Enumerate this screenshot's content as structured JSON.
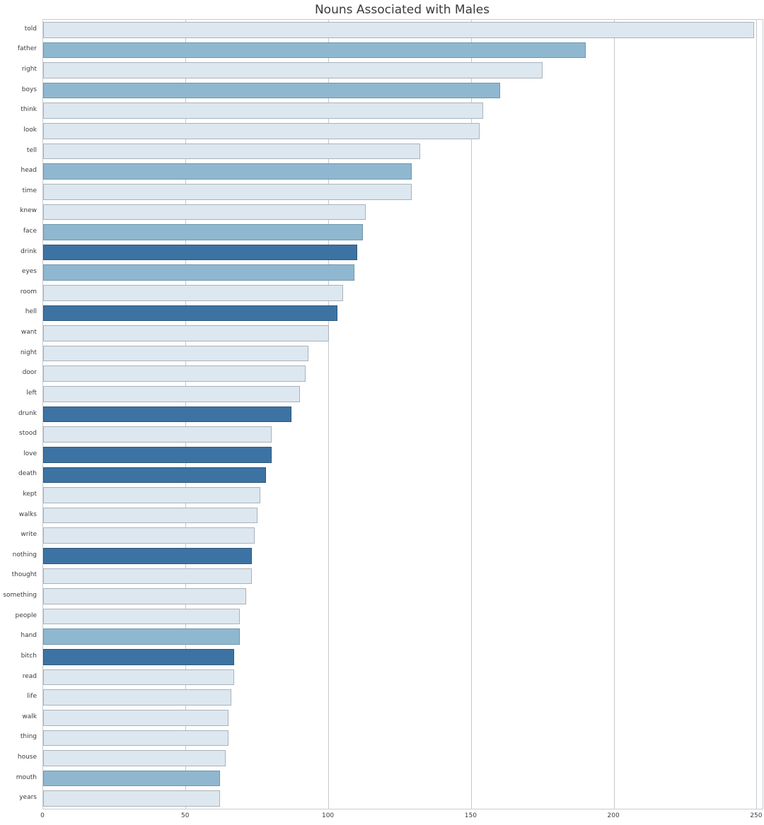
{
  "chart_data": {
    "type": "bar",
    "orientation": "horizontal",
    "title": "Nouns Associated with Males",
    "xlabel": "",
    "ylabel": "",
    "grid": true,
    "x_ticks": [
      0,
      50,
      100,
      150,
      200,
      250
    ],
    "xlim": [
      0,
      252
    ],
    "categories": [
      "told",
      "father",
      "right",
      "boys",
      "think",
      "look",
      "tell",
      "head",
      "time",
      "knew",
      "face",
      "drink",
      "eyes",
      "room",
      "hell",
      "want",
      "night",
      "door",
      "left",
      "drunk",
      "stood",
      "love",
      "death",
      "kept",
      "walks",
      "write",
      "nothing",
      "thought",
      "something",
      "people",
      "hand",
      "bitch",
      "read",
      "life",
      "walk",
      "thing",
      "house",
      "mouth",
      "years"
    ],
    "values": [
      249,
      190,
      175,
      160,
      154,
      153,
      132,
      129,
      129,
      113,
      112,
      110,
      109,
      105,
      103,
      100,
      93,
      92,
      90,
      87,
      80,
      80,
      78,
      76,
      75,
      74,
      73,
      73,
      71,
      69,
      69,
      67,
      67,
      66,
      65,
      65,
      64,
      62,
      62
    ],
    "color_tiers": [
      "light",
      "medium",
      "light",
      "medium",
      "light",
      "light",
      "light",
      "medium",
      "light",
      "light",
      "medium",
      "dark",
      "medium",
      "light",
      "dark",
      "light",
      "light",
      "light",
      "light",
      "dark",
      "light",
      "dark",
      "dark",
      "light",
      "light",
      "light",
      "dark",
      "light",
      "light",
      "light",
      "medium",
      "dark",
      "light",
      "light",
      "light",
      "light",
      "light",
      "medium",
      "light"
    ],
    "colors": {
      "light_fill": "#dde7ef",
      "light_edge": "#a9b2ba",
      "medium_fill": "#8fb8d0",
      "medium_edge": "#6e96ad",
      "dark_fill": "#3d73a3",
      "dark_edge": "#2e5878",
      "gridline": "#c4cad0",
      "spine": "#c7ccd1",
      "title_text": "#3a3a3a",
      "tick_text": "#3c3c3c"
    }
  }
}
